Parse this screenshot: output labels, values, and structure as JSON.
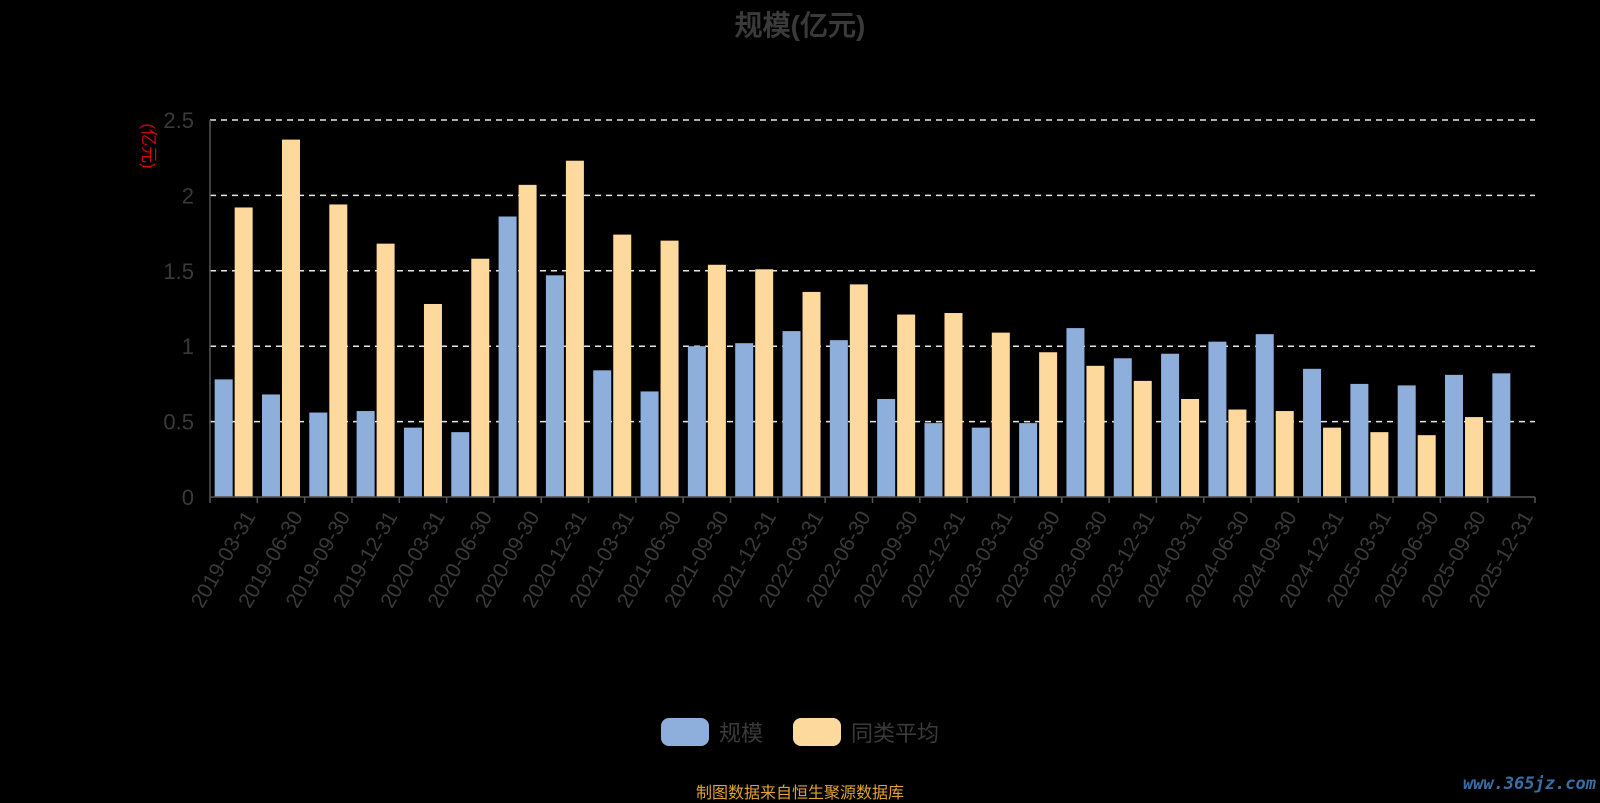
{
  "chart_data": {
    "type": "bar",
    "title": "规模(亿元)",
    "ylabel": "(亿元)",
    "ylim": [
      0,
      2.5
    ],
    "yticks": [
      "0",
      "0.5",
      "1",
      "1.5",
      "2",
      "2.5"
    ],
    "grid": true,
    "legend_position": "bottom-center",
    "categories": [
      "2019-03-31",
      "2019-06-30",
      "2019-09-30",
      "2019-12-31",
      "2020-03-31",
      "2020-06-30",
      "2020-09-30",
      "2020-12-31",
      "2021-03-31",
      "2021-06-30",
      "2021-09-30",
      "2021-12-31",
      "2022-03-31",
      "2022-06-30",
      "2022-09-30",
      "2022-12-31",
      "2023-03-31",
      "2023-06-30",
      "2023-09-30",
      "2023-12-31",
      "2024-03-31",
      "2024-06-30",
      "2024-09-30",
      "2024-12-31",
      "2025-03-31",
      "2025-06-30",
      "2025-09-30",
      "2025-12-31"
    ],
    "series": [
      {
        "name": "规模",
        "color": "#8eaedc",
        "values": [
          0.78,
          0.68,
          0.56,
          0.57,
          0.46,
          0.43,
          1.86,
          1.47,
          0.84,
          0.7,
          1.0,
          1.02,
          1.1,
          1.04,
          0.65,
          0.49,
          0.46,
          0.49,
          1.12,
          0.92,
          0.95,
          1.03,
          1.08,
          0.85,
          0.75,
          0.74,
          0.81,
          0.82
        ]
      },
      {
        "name": "同类平均",
        "color": "#fdd99e",
        "values": [
          1.92,
          2.37,
          1.94,
          1.68,
          1.28,
          1.58,
          2.07,
          2.23,
          1.74,
          1.7,
          1.54,
          1.51,
          1.36,
          1.41,
          1.21,
          1.22,
          1.09,
          0.96,
          0.87,
          0.77,
          0.65,
          0.58,
          0.57,
          0.46,
          0.43,
          0.41,
          0.53,
          null
        ]
      }
    ]
  },
  "footer": {
    "source_text": "制图数据来自恒生聚源数据库",
    "watermark": "www.365jz.com"
  },
  "colors": {
    "background": "#000000",
    "grid": "#e6e6e6",
    "axis_text": "#3a3a3a",
    "ylabel": "#d9000d",
    "source": "#e1a230",
    "watermark": "#3a6ea5"
  }
}
